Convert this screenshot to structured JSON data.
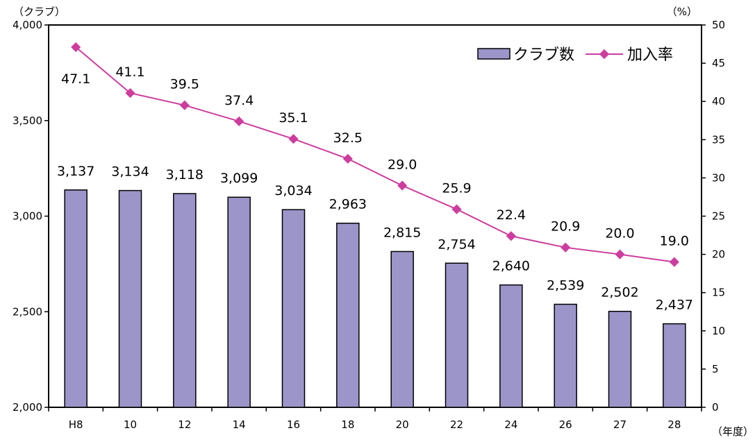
{
  "chart_data": {
    "type": "bar",
    "categories": [
      "H8",
      "10",
      "12",
      "14",
      "16",
      "18",
      "20",
      "22",
      "24",
      "26",
      "27",
      "28"
    ],
    "series": [
      {
        "name": "クラブ数",
        "type": "bar",
        "axis": "left",
        "color": "#9b95c9",
        "values": [
          3137,
          3134,
          3118,
          3099,
          3034,
          2963,
          2815,
          2754,
          2640,
          2539,
          2502,
          2437
        ],
        "labels": [
          "3,137",
          "3,134",
          "3,118",
          "3,099",
          "3,034",
          "2,963",
          "2,815",
          "2,754",
          "2,640",
          "2,539",
          "2,502",
          "2,437"
        ]
      },
      {
        "name": "加入率",
        "type": "line",
        "axis": "right",
        "color": "#cc3d9e",
        "values": [
          47.1,
          41.1,
          39.5,
          37.4,
          35.1,
          32.5,
          29.0,
          25.9,
          22.4,
          20.9,
          20.0,
          19.0
        ],
        "labels": [
          "47.1",
          "41.1",
          "39.5",
          "37.4",
          "35.1",
          "32.5",
          "29.0",
          "25.9",
          "22.4",
          "20.9",
          "20.0",
          "19.0"
        ]
      }
    ],
    "left_axis": {
      "unit": "（クラブ）",
      "ylim": [
        2000,
        4000
      ],
      "ticks": [
        2000,
        2500,
        3000,
        3500,
        4000
      ],
      "tick_labels": [
        "2,000",
        "2,500",
        "3,000",
        "3,500",
        "4,000"
      ]
    },
    "right_axis": {
      "unit": "（%）",
      "ylim": [
        0,
        50
      ],
      "ticks": [
        0,
        5,
        10,
        15,
        20,
        25,
        30,
        35,
        40,
        45,
        50
      ],
      "tick_labels": [
        "0",
        "5",
        "10",
        "15",
        "20",
        "25",
        "30",
        "35",
        "40",
        "45",
        "50"
      ]
    },
    "x_axis": {
      "unit": "（年度）"
    },
    "legend": {
      "position": "top-right"
    },
    "grid": false
  }
}
